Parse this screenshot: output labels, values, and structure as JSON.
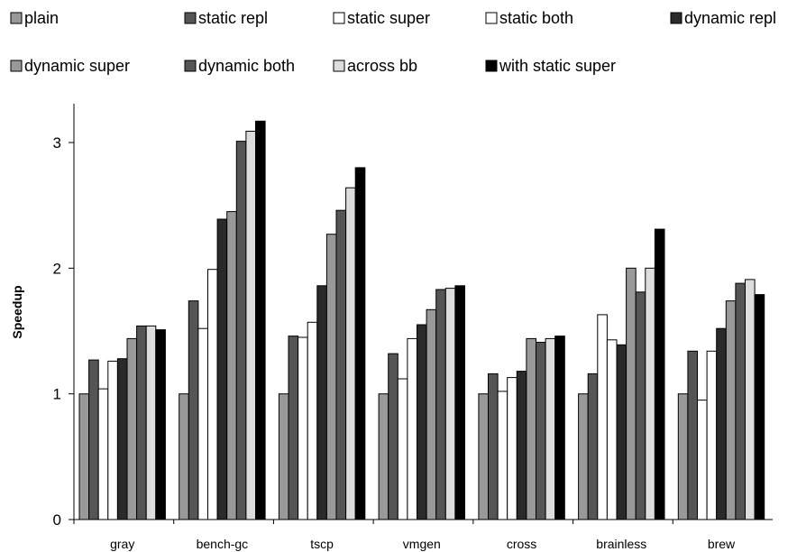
{
  "chart_data": {
    "type": "bar",
    "title": "",
    "xlabel": "",
    "ylabel": "Speedup",
    "ylim": [
      0,
      3.3
    ],
    "yticks": [
      "0",
      "1",
      "2",
      "3"
    ],
    "grid": false,
    "legend_position": "top",
    "categories": [
      "gray",
      "bench-gc",
      "tscp",
      "vmgen",
      "cross",
      "brainless",
      "brew"
    ],
    "series": [
      {
        "name": "plain",
        "color": "#999999",
        "values": [
          1.0,
          1.0,
          1.0,
          1.0,
          1.0,
          1.0,
          1.0
        ]
      },
      {
        "name": "static repl",
        "color": "#555555",
        "values": [
          1.27,
          1.74,
          1.46,
          1.32,
          1.16,
          1.16,
          1.34
        ]
      },
      {
        "name": "static super",
        "color": "#ffffff",
        "values": [
          1.04,
          1.52,
          1.45,
          1.12,
          1.02,
          1.63,
          0.95
        ]
      },
      {
        "name": "static both",
        "color": "#ffffff",
        "values": [
          1.26,
          1.99,
          1.57,
          1.44,
          1.13,
          1.43,
          1.34
        ]
      },
      {
        "name": "dynamic repl",
        "color": "#2a2a2a",
        "values": [
          1.28,
          2.39,
          1.86,
          1.55,
          1.18,
          1.39,
          1.52
        ]
      },
      {
        "name": "dynamic super",
        "color": "#999999",
        "values": [
          1.44,
          2.45,
          2.27,
          1.67,
          1.44,
          2.0,
          1.74
        ]
      },
      {
        "name": "dynamic both",
        "color": "#555555",
        "values": [
          1.54,
          3.01,
          2.46,
          1.83,
          1.41,
          1.81,
          1.88
        ]
      },
      {
        "name": "across bb",
        "color": "#dddddd",
        "values": [
          1.54,
          3.09,
          2.64,
          1.84,
          1.44,
          2.0,
          1.91
        ]
      },
      {
        "name": "with static super",
        "color": "#000000",
        "values": [
          1.51,
          3.17,
          2.8,
          1.86,
          1.46,
          2.31,
          1.79
        ]
      }
    ]
  }
}
